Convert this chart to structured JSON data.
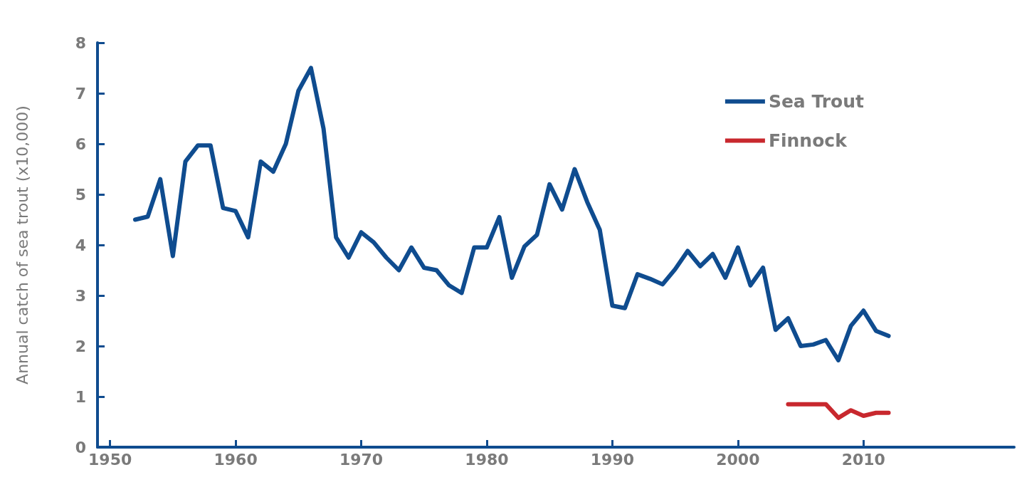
{
  "chart_data": {
    "type": "line",
    "ylabel": "Annual catch of sea trout (x10,000)",
    "xlim": [
      1949,
      2022
    ],
    "xticks": [
      1950,
      1960,
      1970,
      1980,
      1990,
      2000,
      2010
    ],
    "ylim": [
      0,
      8
    ],
    "yticks": [
      0,
      1,
      2,
      3,
      4,
      5,
      6,
      7,
      8
    ],
    "grid": false,
    "legend": "top right",
    "marker": "none",
    "line_style": "solid",
    "series": [
      {
        "name": "Sea Trout",
        "color": "#0f4c8f",
        "x": [
          1952,
          1953,
          1954,
          1955,
          1956,
          1957,
          1958,
          1959,
          1960,
          1961,
          1962,
          1963,
          1964,
          1965,
          1966,
          1967,
          1968,
          1969,
          1970,
          1971,
          1972,
          1973,
          1974,
          1975,
          1976,
          1977,
          1978,
          1979,
          1980,
          1981,
          1982,
          1983,
          1984,
          1985,
          1986,
          1987,
          1988,
          1989,
          1990,
          1991,
          1992,
          1993,
          1994,
          1995,
          1996,
          1997,
          1998,
          1999,
          2000,
          2001,
          2002,
          2003,
          2004,
          2005,
          2006,
          2007,
          2008,
          2009,
          2010,
          2011,
          2012
        ],
        "values": [
          4.5,
          4.56,
          5.3,
          3.78,
          5.65,
          5.97,
          5.97,
          4.73,
          4.67,
          4.15,
          5.65,
          5.45,
          6.0,
          7.05,
          7.5,
          6.3,
          4.15,
          3.75,
          4.25,
          4.05,
          3.75,
          3.5,
          3.95,
          3.55,
          3.5,
          3.2,
          3.05,
          3.95,
          3.95,
          4.55,
          3.35,
          3.97,
          4.2,
          5.2,
          4.7,
          5.5,
          4.85,
          4.3,
          2.8,
          2.75,
          3.42,
          3.33,
          3.22,
          3.52,
          3.88,
          3.58,
          3.82,
          3.35,
          3.95,
          3.2,
          3.55,
          2.32,
          2.55,
          2.0,
          2.03,
          2.12,
          1.72,
          2.4,
          2.7,
          2.3,
          2.2
        ]
      },
      {
        "name": "Finnock",
        "color": "#c8282e",
        "x": [
          2004,
          2005,
          2006,
          2007,
          2008,
          2009,
          2010,
          2011,
          2012
        ],
        "values": [
          0.85,
          0.85,
          0.85,
          0.85,
          0.58,
          0.73,
          0.62,
          0.68,
          0.68
        ]
      }
    ]
  }
}
